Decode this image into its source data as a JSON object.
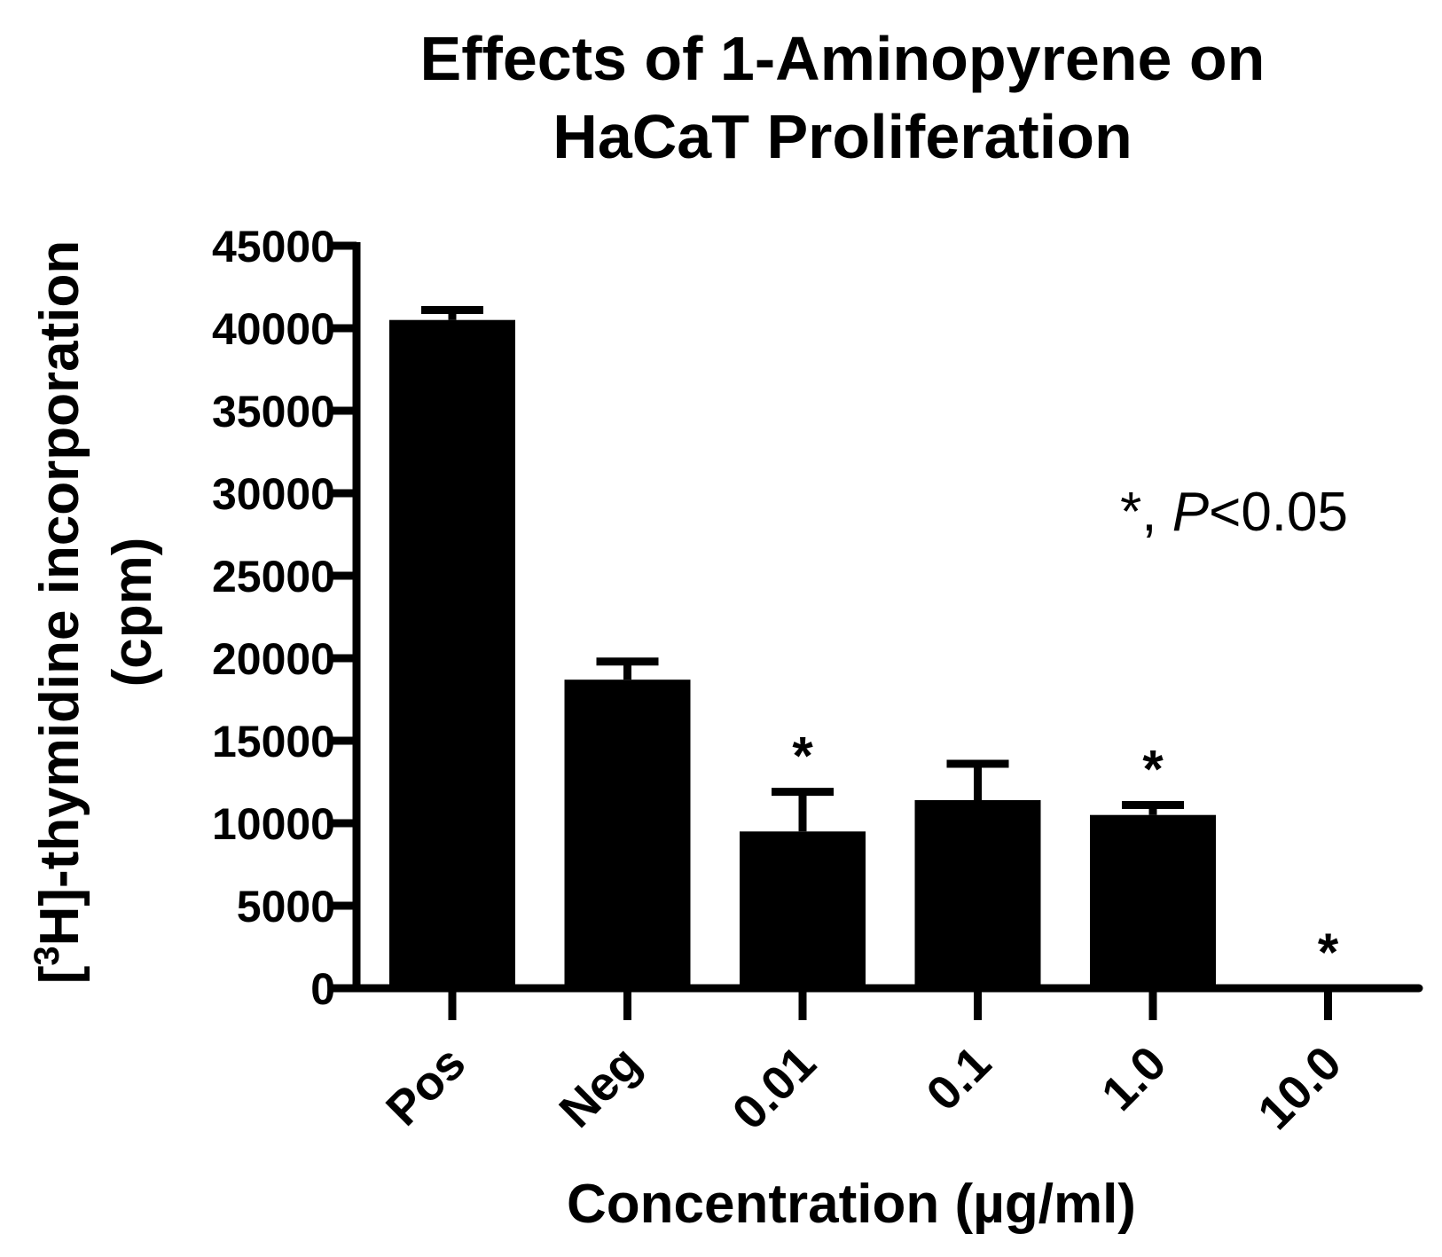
{
  "chart_data": {
    "type": "bar",
    "title_lines": [
      "Effects of 1-Aminopyrene on",
      "HaCaT Proliferation"
    ],
    "xlabel": "Concentration (µg/ml)",
    "ylabel": {
      "bracket_open": "[",
      "superscript": "3",
      "main": "H]-thymidine incorporation",
      "unit": "(cpm)"
    },
    "categories": [
      "Pos",
      "Neg",
      "0.01",
      "0.1",
      "1.0",
      "10.0"
    ],
    "values": [
      40500,
      18700,
      9500,
      11400,
      10500,
      0
    ],
    "errors": [
      600,
      1100,
      2400,
      2200,
      600,
      0
    ],
    "significant": [
      false,
      false,
      true,
      false,
      true,
      true
    ],
    "significance_marker": "*",
    "annotation": {
      "prefix": "*, ",
      "italic": "P",
      "suffix": "<0.05"
    },
    "ylim": [
      0,
      45000
    ],
    "yticks": [
      0,
      5000,
      10000,
      15000,
      20000,
      25000,
      30000,
      35000,
      40000,
      45000
    ],
    "bar_color": "#000000",
    "grid": false,
    "legend": "none"
  }
}
